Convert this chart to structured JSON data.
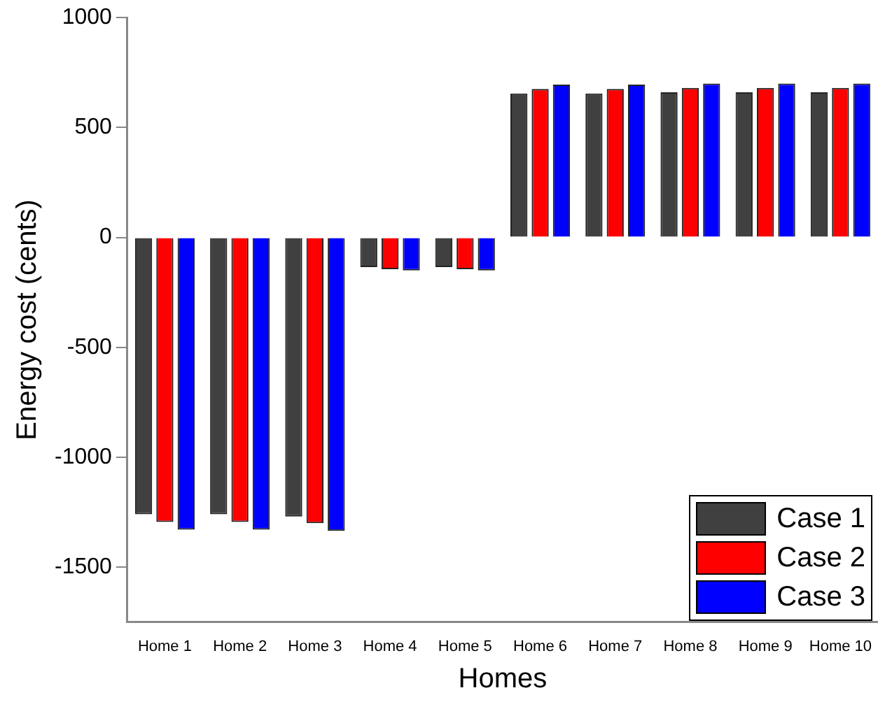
{
  "chart_data": {
    "type": "bar",
    "xlabel": "Homes",
    "ylabel": "Energy cost (cents)",
    "categories": [
      "Home 1",
      "Home 2",
      "Home 3",
      "Home 4",
      "Home 5",
      "Home 6",
      "Home 7",
      "Home 8",
      "Home 9",
      "Home 10"
    ],
    "series": [
      {
        "name": "Case 1",
        "color": "#404040",
        "values": [
          -1260,
          -1260,
          -1270,
          -135,
          -135,
          655,
          655,
          660,
          660,
          660
        ]
      },
      {
        "name": "Case 2",
        "color": "#ff0000",
        "values": [
          -1295,
          -1295,
          -1300,
          -145,
          -145,
          675,
          675,
          680,
          680,
          680
        ]
      },
      {
        "name": "Case 3",
        "color": "#0000ff",
        "values": [
          -1330,
          -1330,
          -1335,
          -150,
          -150,
          695,
          695,
          700,
          700,
          700
        ]
      }
    ],
    "ylim": [
      -1750,
      1000
    ],
    "yticks": [
      -1500,
      -1000,
      -500,
      0,
      500,
      1000
    ],
    "grid": false,
    "legend": "bottom right"
  }
}
